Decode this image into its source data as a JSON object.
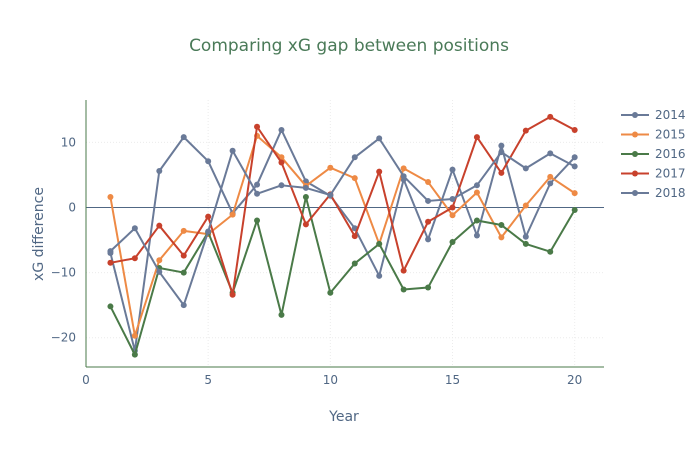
{
  "chart_data": {
    "type": "line",
    "title": "Comparing xG gap between positions",
    "xlabel": "Year",
    "ylabel": "xG difference",
    "xlim": [
      0,
      21.2
    ],
    "ylim": [
      -24.5,
      16.5
    ],
    "x_ticks": [
      0,
      5,
      10,
      15,
      20
    ],
    "y_ticks": [
      -20,
      -10,
      0,
      10
    ],
    "grid": true,
    "legend_position": "right",
    "x": [
      1,
      2,
      3,
      4,
      5,
      6,
      7,
      8,
      9,
      10,
      11,
      12,
      13,
      14,
      15,
      16,
      17,
      18,
      19,
      20
    ],
    "series": [
      {
        "name": "2014",
        "color": "#6a7a98",
        "values": [
          -7.0,
          -22.0,
          5.6,
          10.8,
          7.1,
          -0.9,
          3.5,
          11.9,
          4.0,
          1.8,
          -3.2,
          -10.5,
          4.3,
          -4.9,
          5.8,
          -4.3,
          9.5,
          -4.5,
          3.7,
          7.7
        ]
      },
      {
        "name": "2015",
        "color": "#ee8a45",
        "values": [
          1.6,
          -19.7,
          -8.1,
          -3.6,
          -4.1,
          -1.1,
          11.0,
          7.7,
          3.3,
          6.1,
          4.5,
          -5.6,
          6.0,
          3.9,
          -1.2,
          2.3,
          -4.6,
          0.3,
          4.7,
          2.2
        ]
      },
      {
        "name": "2016",
        "color": "#4a7a48",
        "values": [
          -15.2,
          -22.6,
          -9.3,
          -10.0,
          -3.8,
          -13.1,
          -2.0,
          -16.5,
          1.6,
          -13.1,
          -8.6,
          -5.6,
          -12.6,
          -12.3,
          -5.3,
          -2.0,
          -2.7,
          -5.6,
          -6.8,
          -0.4
        ]
      },
      {
        "name": "2017",
        "color": "#c8412c",
        "values": [
          -8.5,
          -7.8,
          -2.8,
          -7.4,
          -1.4,
          -13.4,
          12.4,
          6.9,
          -2.6,
          2.0,
          -4.4,
          5.5,
          -9.7,
          -2.2,
          0.0,
          10.8,
          5.3,
          11.8,
          13.9,
          11.9
        ]
      },
      {
        "name": "2018",
        "color": "#6a7a98",
        "values": [
          -6.7,
          -3.2,
          -9.9,
          -15.0,
          -3.7,
          8.7,
          2.1,
          3.4,
          3.0,
          1.9,
          7.7,
          10.6,
          4.8,
          1.0,
          1.3,
          3.4,
          8.5,
          6.0,
          8.3,
          6.3
        ]
      }
    ]
  }
}
